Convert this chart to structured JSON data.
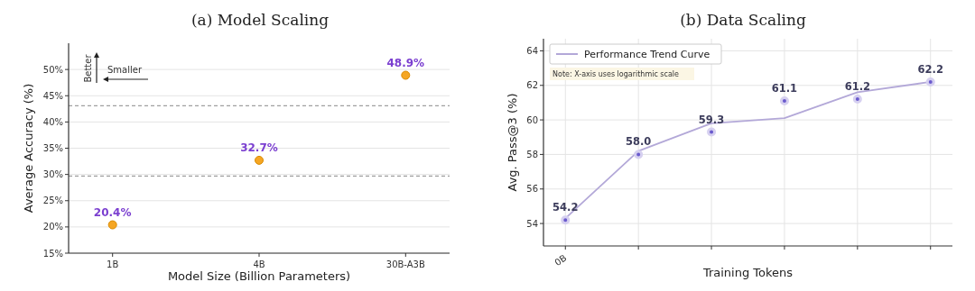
{
  "chart_data": [
    {
      "type": "scatter",
      "title": "(a) Model Scaling",
      "xlabel": "Model Size (Billion Parameters)",
      "ylabel": "Average Accuracy (%)",
      "categories": [
        "1B",
        "4B",
        "30B-A3B"
      ],
      "series": [
        {
          "color": "#f5a623",
          "values": [
            20.4,
            32.7,
            48.9
          ],
          "value_labels": [
            "20.4%",
            "32.7%",
            "48.9%"
          ]
        }
      ],
      "ylim": [
        15,
        55
      ],
      "yticks": [
        {
          "value": 15,
          "label": "15%"
        },
        {
          "value": 20,
          "label": "20%"
        },
        {
          "value": 25,
          "label": "25%"
        },
        {
          "value": 30,
          "label": "30%"
        },
        {
          "value": 35,
          "label": "35%"
        },
        {
          "value": 40,
          "label": "40%"
        },
        {
          "value": 45,
          "label": "45%"
        },
        {
          "value": 50,
          "label": "50%"
        }
      ],
      "ref_lines": [
        {
          "axis": "y",
          "value": 43.1,
          "color": "#888888",
          "line_style": "dashed"
        },
        {
          "axis": "y",
          "value": 29.7,
          "color": "#888888",
          "line_style": "dashed"
        }
      ],
      "annotations": [
        "Better",
        "Smaller"
      ],
      "grid": "y",
      "marker": "circle"
    },
    {
      "type": "scatter",
      "title": "(b) Data Scaling",
      "xlabel": "Training Tokens",
      "ylabel": "Avg. Pass@3 (%)",
      "categories": [
        "0B",
        null,
        null,
        null,
        null,
        null
      ],
      "series": [
        {
          "type": "line",
          "name": "Performance Trend Curve",
          "color": "#b3a8d8",
          "values": [
            54.3,
            58.2,
            59.8,
            60.1,
            61.6,
            62.2
          ]
        },
        {
          "marker": "circle",
          "color": "#6a5acd",
          "values": [
            54.2,
            58.0,
            59.3,
            61.1,
            61.2,
            62.2
          ],
          "value_labels": [
            "54.2",
            "58.0",
            "59.3",
            "61.1",
            "61.2",
            "62.2"
          ]
        }
      ],
      "ylim": [
        52.7,
        64.7
      ],
      "yticks": [
        54,
        56,
        58,
        60,
        62,
        64
      ],
      "annotations": [
        "Note: X-axis uses logarithmic scale"
      ],
      "grid": true,
      "legend": "top left"
    }
  ]
}
